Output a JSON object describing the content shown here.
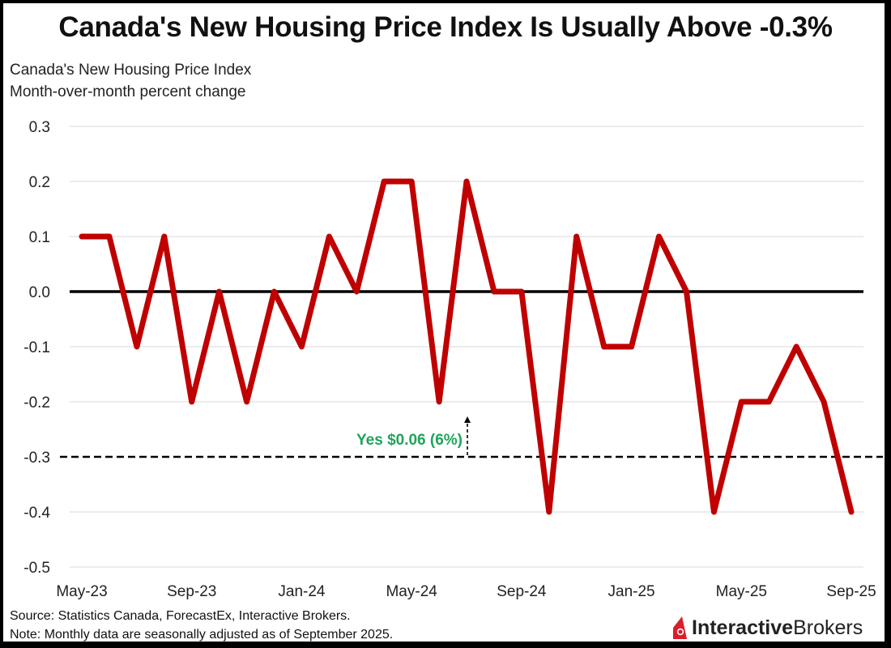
{
  "title": "Canada's New Housing Price Index Is Usually Above -0.3%",
  "subtitle_line1": "Canada's New Housing Price Index",
  "subtitle_line2": "Month-over-month percent change",
  "footer": {
    "source": "Source: Statistics Canada, ForecastEx, Interactive Brokers.",
    "note": "Note: Monthly data are seasonally adjusted as of September 2025."
  },
  "logo": {
    "bold_text": "Interactive",
    "regular_text": "Brokers",
    "icon": "interactive-brokers-flame-icon",
    "accent_color": "#d81e2c"
  },
  "chart_data": {
    "type": "line",
    "title": "Canada's New Housing Price Index Is Usually Above -0.3%",
    "ylabel": "Month-over-month percent change",
    "xlabel": "",
    "ylim": [
      -0.5,
      0.3
    ],
    "yticks": [
      0.3,
      0.2,
      0.1,
      0.0,
      -0.1,
      -0.2,
      -0.3,
      -0.4,
      -0.5
    ],
    "ytick_labels": [
      "0.3",
      "0.2",
      "0.1",
      "0.0",
      "-0.1",
      "-0.2",
      "-0.3",
      "-0.4",
      "-0.5"
    ],
    "grid": true,
    "x": [
      "May-23",
      "Jun-23",
      "Jul-23",
      "Aug-23",
      "Sep-23",
      "Oct-23",
      "Nov-23",
      "Dec-23",
      "Jan-24",
      "Feb-24",
      "Mar-24",
      "Apr-24",
      "May-24",
      "Jun-24",
      "Jul-24",
      "Aug-24",
      "Sep-24",
      "Oct-24",
      "Nov-24",
      "Dec-24",
      "Jan-25",
      "Feb-25",
      "Mar-25",
      "Apr-25",
      "May-25",
      "Jun-25",
      "Jul-25",
      "Aug-25",
      "Sep-25"
    ],
    "xtick_labels": [
      {
        "index": 0,
        "label": "May-23"
      },
      {
        "index": 4,
        "label": "Sep-23"
      },
      {
        "index": 8,
        "label": "Jan-24"
      },
      {
        "index": 12,
        "label": "May-24"
      },
      {
        "index": 16,
        "label": "Sep-24"
      },
      {
        "index": 20,
        "label": "Jan-25"
      },
      {
        "index": 24,
        "label": "May-25"
      },
      {
        "index": 28,
        "label": "Sep-25"
      }
    ],
    "series": [
      {
        "name": "Canada's New Housing Price Index",
        "color": "#c00000",
        "values": [
          0.1,
          0.1,
          -0.1,
          0.1,
          -0.2,
          0.0,
          -0.2,
          0.0,
          -0.1,
          0.1,
          0.0,
          0.2,
          0.2,
          -0.2,
          0.2,
          0.0,
          0.0,
          -0.4,
          0.1,
          -0.1,
          -0.1,
          0.1,
          0.0,
          -0.4,
          -0.2,
          -0.2,
          -0.1,
          -0.2,
          -0.4
        ]
      }
    ],
    "reference_lines": [
      {
        "name": "zero-line",
        "value": 0.0,
        "style": "solid",
        "color": "#000000"
      },
      {
        "name": "threshold-line",
        "value": -0.3,
        "style": "dashed",
        "color": "#000000"
      }
    ],
    "annotations": [
      {
        "text": "Yes $0.06 (6%)",
        "color": "#1fa45a",
        "y": -0.3,
        "arrow_direction": "up",
        "anchor_index": 14
      }
    ]
  }
}
